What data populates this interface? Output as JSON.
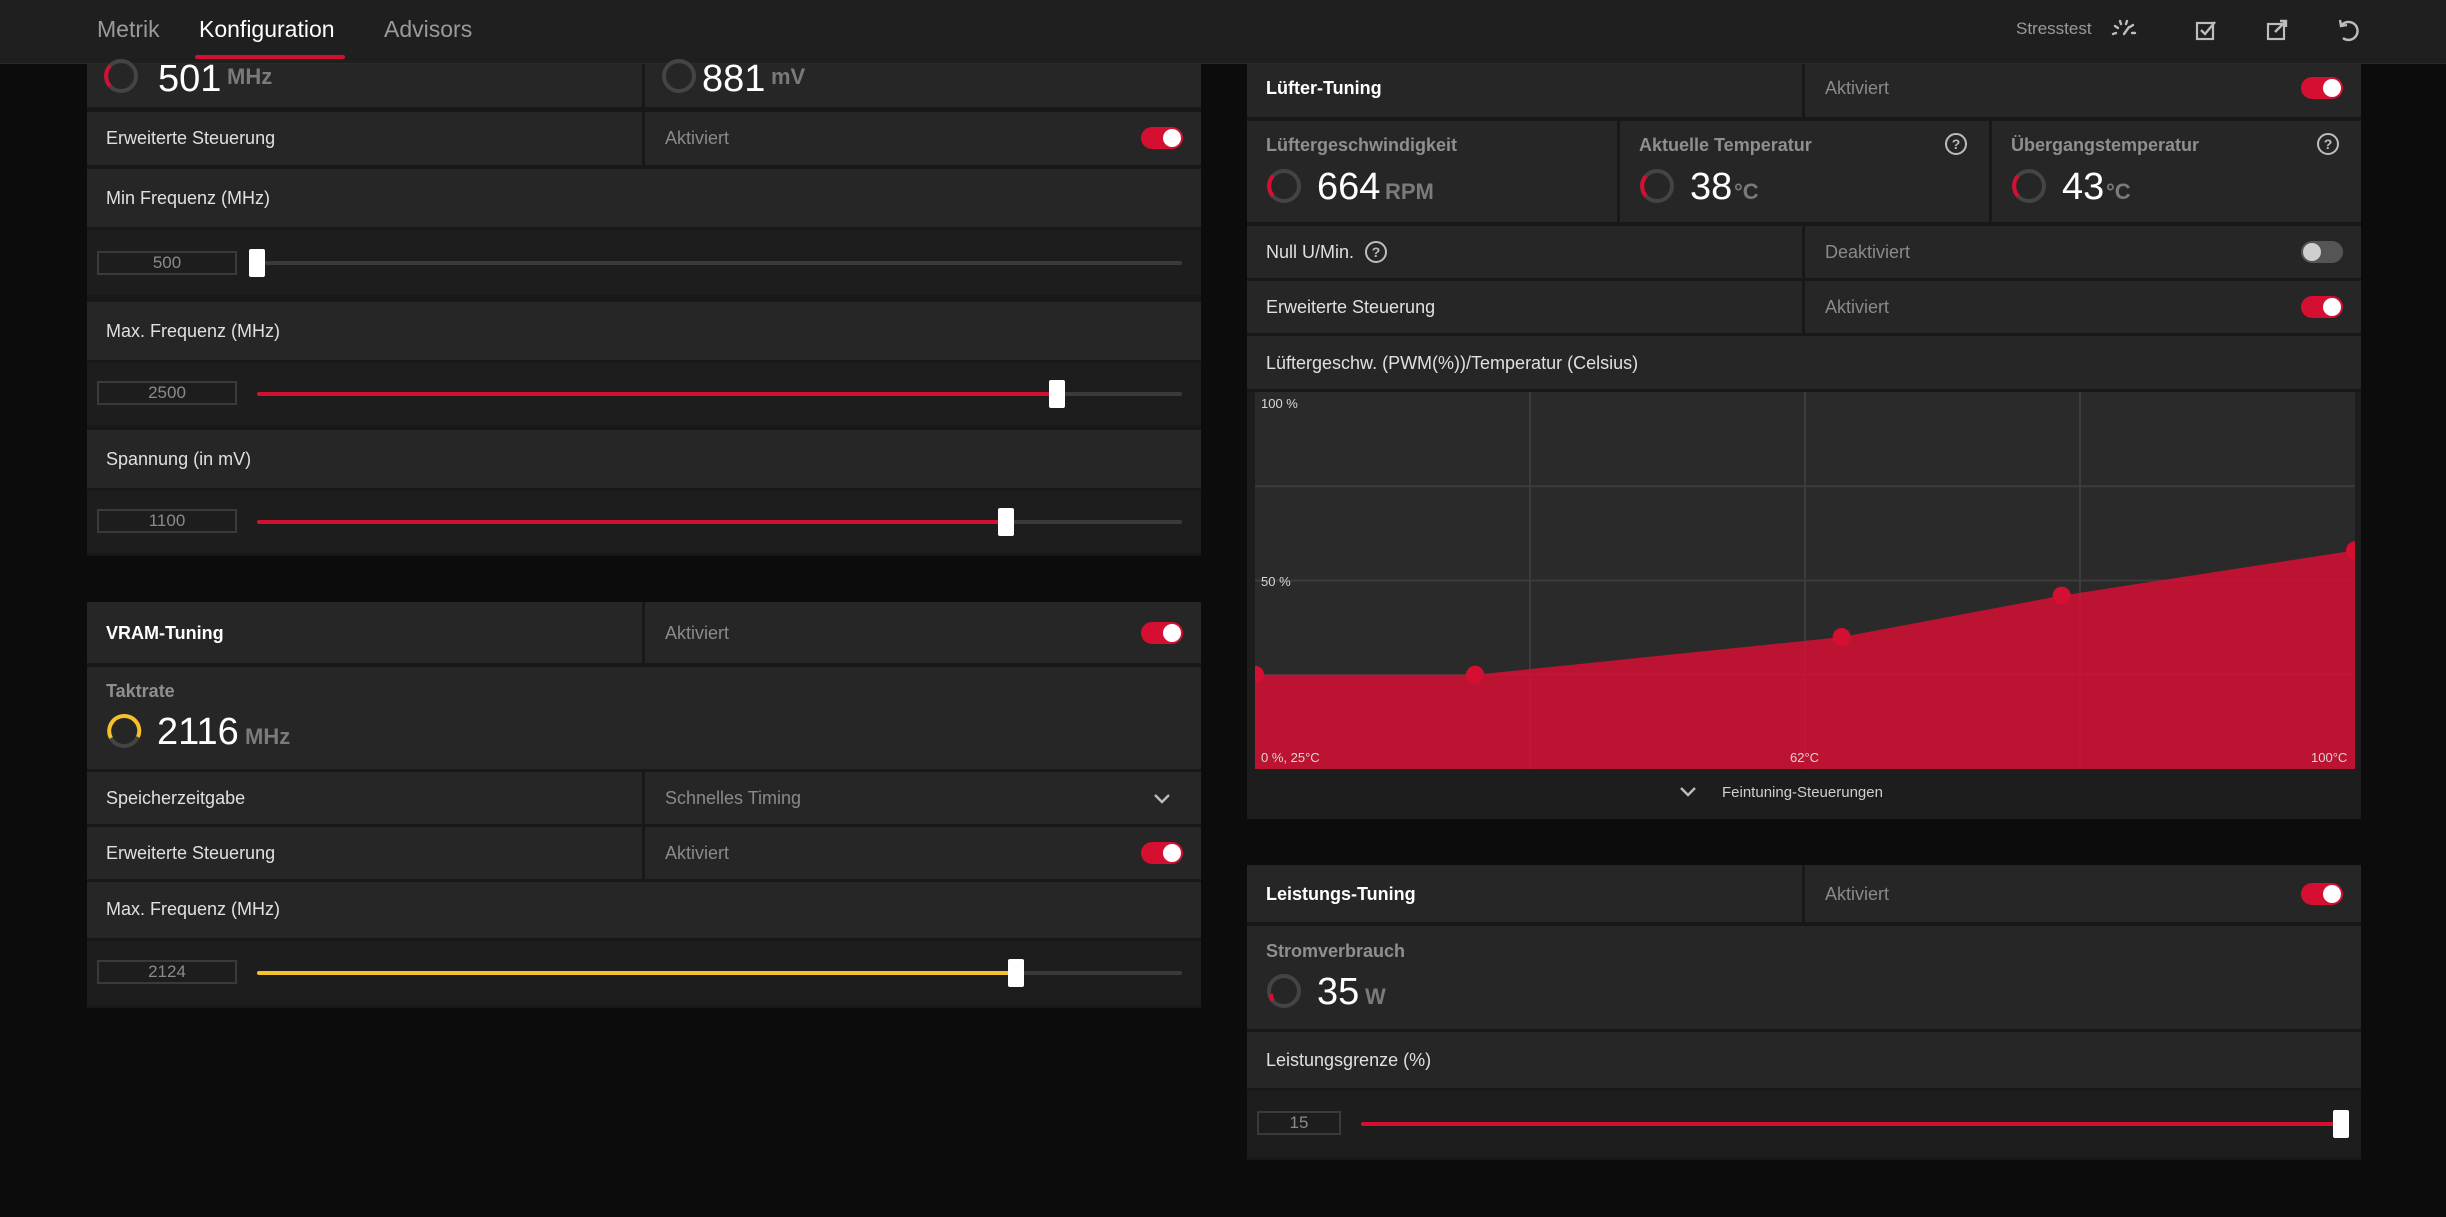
{
  "tabs": [
    {
      "label": "Metrik"
    },
    {
      "label": "Konfiguration"
    },
    {
      "label": "Advisors"
    }
  ],
  "header": {
    "stress_label": "Stresstest"
  },
  "gpu": {
    "freq_value": "501",
    "freq_unit": "MHz",
    "voltage_value": "881",
    "voltage_unit": "mV",
    "advanced_label": "Erweiterte Steuerung",
    "advanced_state": "Aktiviert",
    "min_freq_label": "Min Frequenz (MHz)",
    "min_freq_value": "500",
    "max_freq_label": "Max. Frequenz (MHz)",
    "max_freq_value": "2500",
    "voltage_label": "Spannung (in mV)",
    "voltage_slider_value": "1100"
  },
  "vram": {
    "title": "VRAM-Tuning",
    "state": "Aktiviert",
    "clock_title": "Taktrate",
    "clock_value": "2116",
    "clock_unit": "MHz",
    "timing_label": "Speicherzeitgabe",
    "timing_value": "Schnelles Timing",
    "advanced_label": "Erweiterte Steuerung",
    "advanced_state": "Aktiviert",
    "max_freq_label": "Max. Frequenz (MHz)",
    "max_freq_value": "2124"
  },
  "fan": {
    "title": "Lüfter-Tuning",
    "state": "Aktiviert",
    "speed_title": "Lüftergeschwindigkeit",
    "speed_value": "664",
    "speed_unit": "RPM",
    "temp_title": "Aktuelle Temperatur",
    "temp_value": "38",
    "temp_unit": "°C",
    "junction_title": "Übergangstemperatur",
    "junction_value": "43",
    "junction_unit": "°C",
    "zero_rpm_label": "Null U/Min.",
    "zero_rpm_state": "Deaktiviert",
    "advanced_label": "Erweiterte Steuerung",
    "advanced_state": "Aktiviert",
    "curve_label": "Lüftergeschw. (PWM(%))/Temperatur (Celsius)",
    "fine_tune_label": "Feintuning-Steuerungen",
    "y_top": "100 %",
    "y_mid": "50 %",
    "x_start": "0 %, 25°C",
    "x_mid": "62°C",
    "x_end": "100°C"
  },
  "power": {
    "title": "Leistungs-Tuning",
    "state": "Aktiviert",
    "consumption_title": "Stromverbrauch",
    "consumption_value": "35",
    "consumption_unit": "W",
    "limit_label": "Leistungsgrenze (%)",
    "limit_value": "15"
  },
  "sliders": {
    "gpu_min_freq": 0.0,
    "gpu_max_freq": 0.865,
    "gpu_voltage": 0.81,
    "vram_max_freq": 0.82,
    "power_limit": 1.0
  },
  "chart_data": {
    "type": "area",
    "xlabel": "°C",
    "ylabel": "%",
    "xlim": [
      25,
      100
    ],
    "ylim": [
      0,
      100
    ],
    "points": [
      {
        "x": 25,
        "y": 25
      },
      {
        "x": 40,
        "y": 25
      },
      {
        "x": 65,
        "y": 35
      },
      {
        "x": 80,
        "y": 46
      },
      {
        "x": 100,
        "y": 58
      }
    ]
  },
  "colors": {
    "accent": "#d50f32",
    "vram_accent": "#f5c02c",
    "background": "#0c0c0c",
    "row": "#262626"
  },
  "icons": [
    "stresstest-gauge-icon",
    "apply-icon",
    "export-icon",
    "reset-icon",
    "help-icon",
    "chevron-down-icon"
  ]
}
